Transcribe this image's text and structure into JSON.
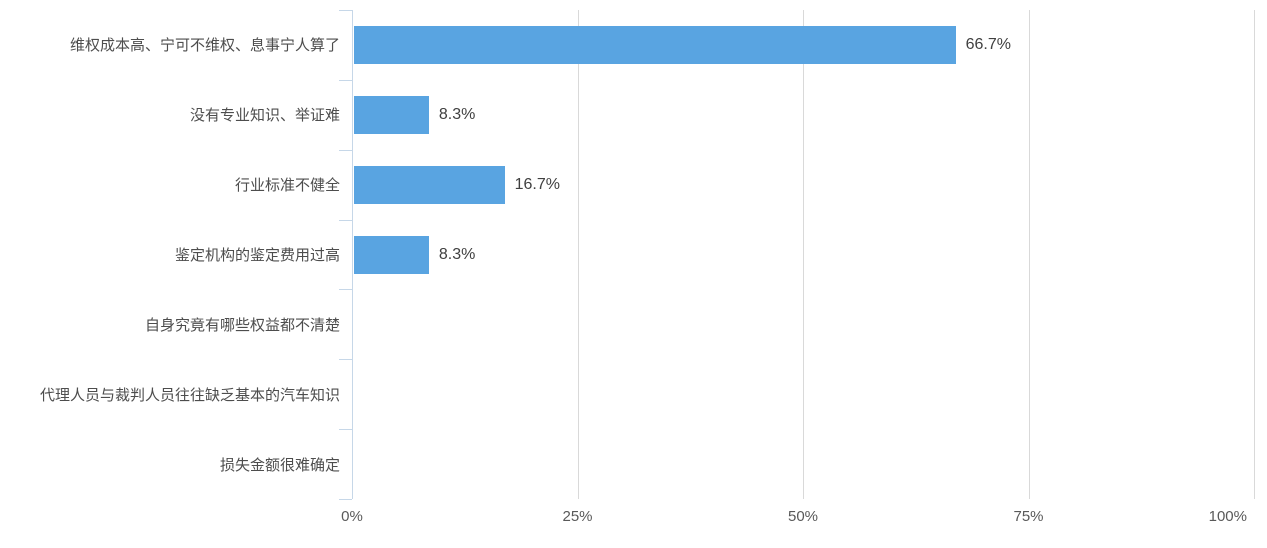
{
  "chart_data": {
    "type": "bar",
    "orientation": "horizontal",
    "categories": [
      "维权成本高、宁可不维权、息事宁人算了",
      "没有专业知识、举证难",
      "行业标准不健全",
      "鉴定机构的鉴定费用过高",
      "自身究竟有哪些权益都不清楚",
      "代理人员与裁判人员往往缺乏基本的汽车知识",
      "损失金额很难确定"
    ],
    "values": [
      66.7,
      8.3,
      16.7,
      8.3,
      0,
      0,
      0
    ],
    "value_labels": [
      "66.7%",
      "8.3%",
      "16.7%",
      "8.3%",
      "",
      "",
      ""
    ],
    "x_ticks": [
      {
        "label": "0%",
        "value": 0
      },
      {
        "label": "25%",
        "value": 25
      },
      {
        "label": "50%",
        "value": 50
      },
      {
        "label": "75%",
        "value": 75
      },
      {
        "label": "100%",
        "value": 100
      }
    ],
    "xlim": [
      0,
      100
    ],
    "grid": true,
    "legend": false,
    "colors": {
      "bar": "#59A4E1",
      "gridline": "#d9d9d9",
      "axis_line": "#c6d7e8",
      "category_label": "#4d4d4d",
      "value_label": "#404040",
      "tick_label": "#595959",
      "background": "#ffffff"
    }
  }
}
